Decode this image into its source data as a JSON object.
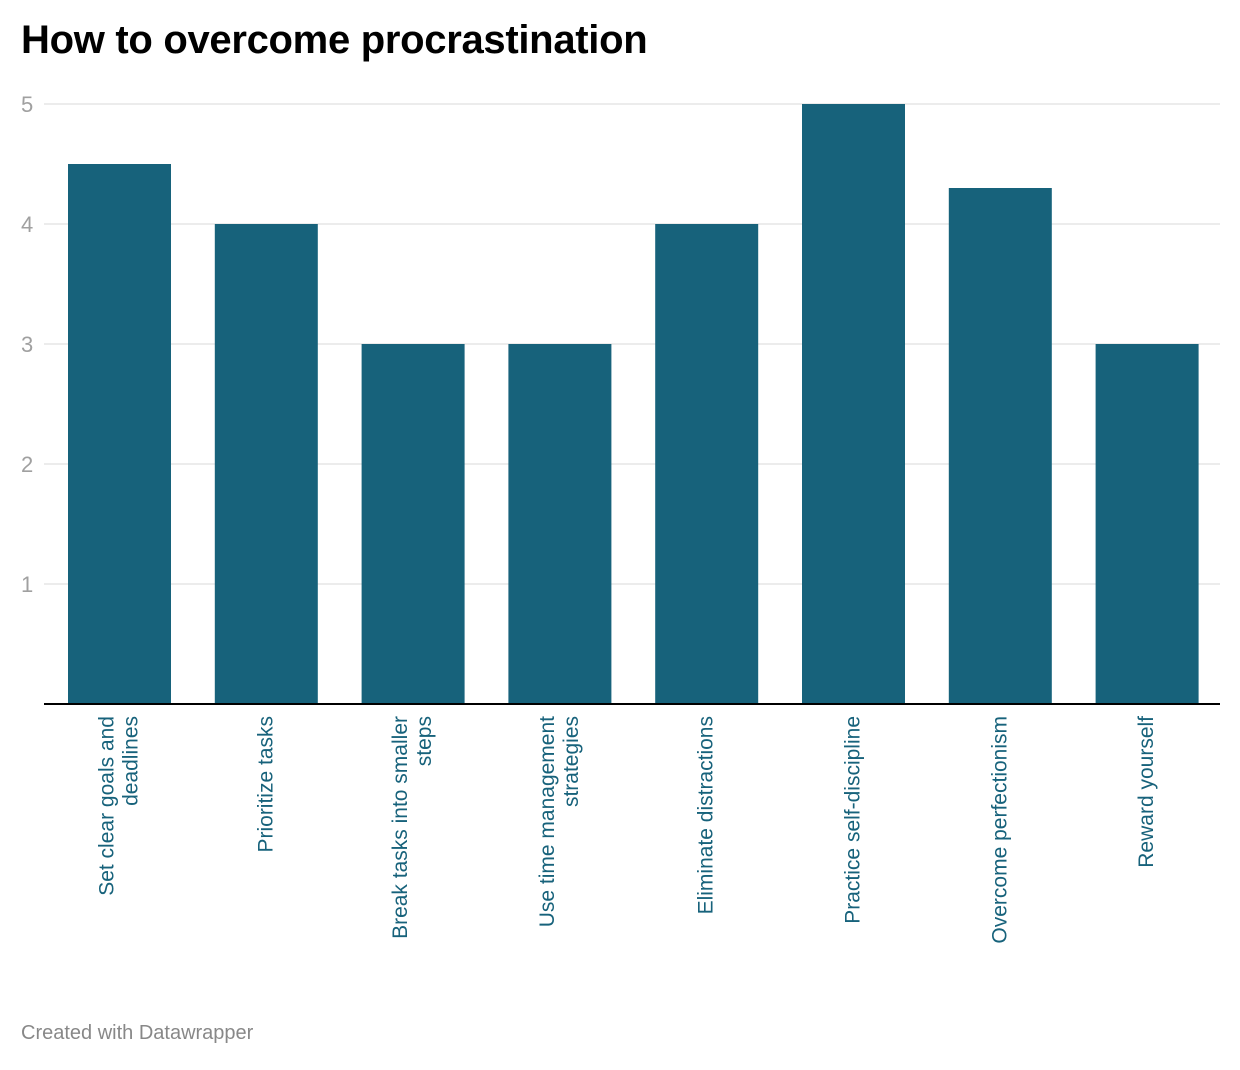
{
  "chart_data": {
    "type": "bar",
    "title": "How to overcome procrastination",
    "categories": [
      [
        "Set clear goals and",
        "deadlines"
      ],
      [
        "Prioritize tasks"
      ],
      [
        "Break tasks into smaller",
        "steps"
      ],
      [
        "Use time management",
        "strategies"
      ],
      [
        "Eliminate distractions"
      ],
      [
        "Practice self-discipline"
      ],
      [
        "Overcome perfectionism"
      ],
      [
        "Reward yourself"
      ]
    ],
    "values": [
      4.5,
      4,
      3,
      3,
      4,
      5,
      4.3,
      3
    ],
    "y_ticks": [
      1,
      2,
      3,
      4,
      5
    ],
    "ylim": [
      0,
      5
    ],
    "xlabel": "",
    "ylabel": "",
    "grid": true,
    "colors": {
      "bar": "#17627b",
      "label": "#17627b",
      "gridline": "#e0e0e0",
      "axis": "#000000",
      "tick": "#a0a0a0"
    }
  },
  "footer": {
    "credit": "Created with Datawrapper"
  }
}
